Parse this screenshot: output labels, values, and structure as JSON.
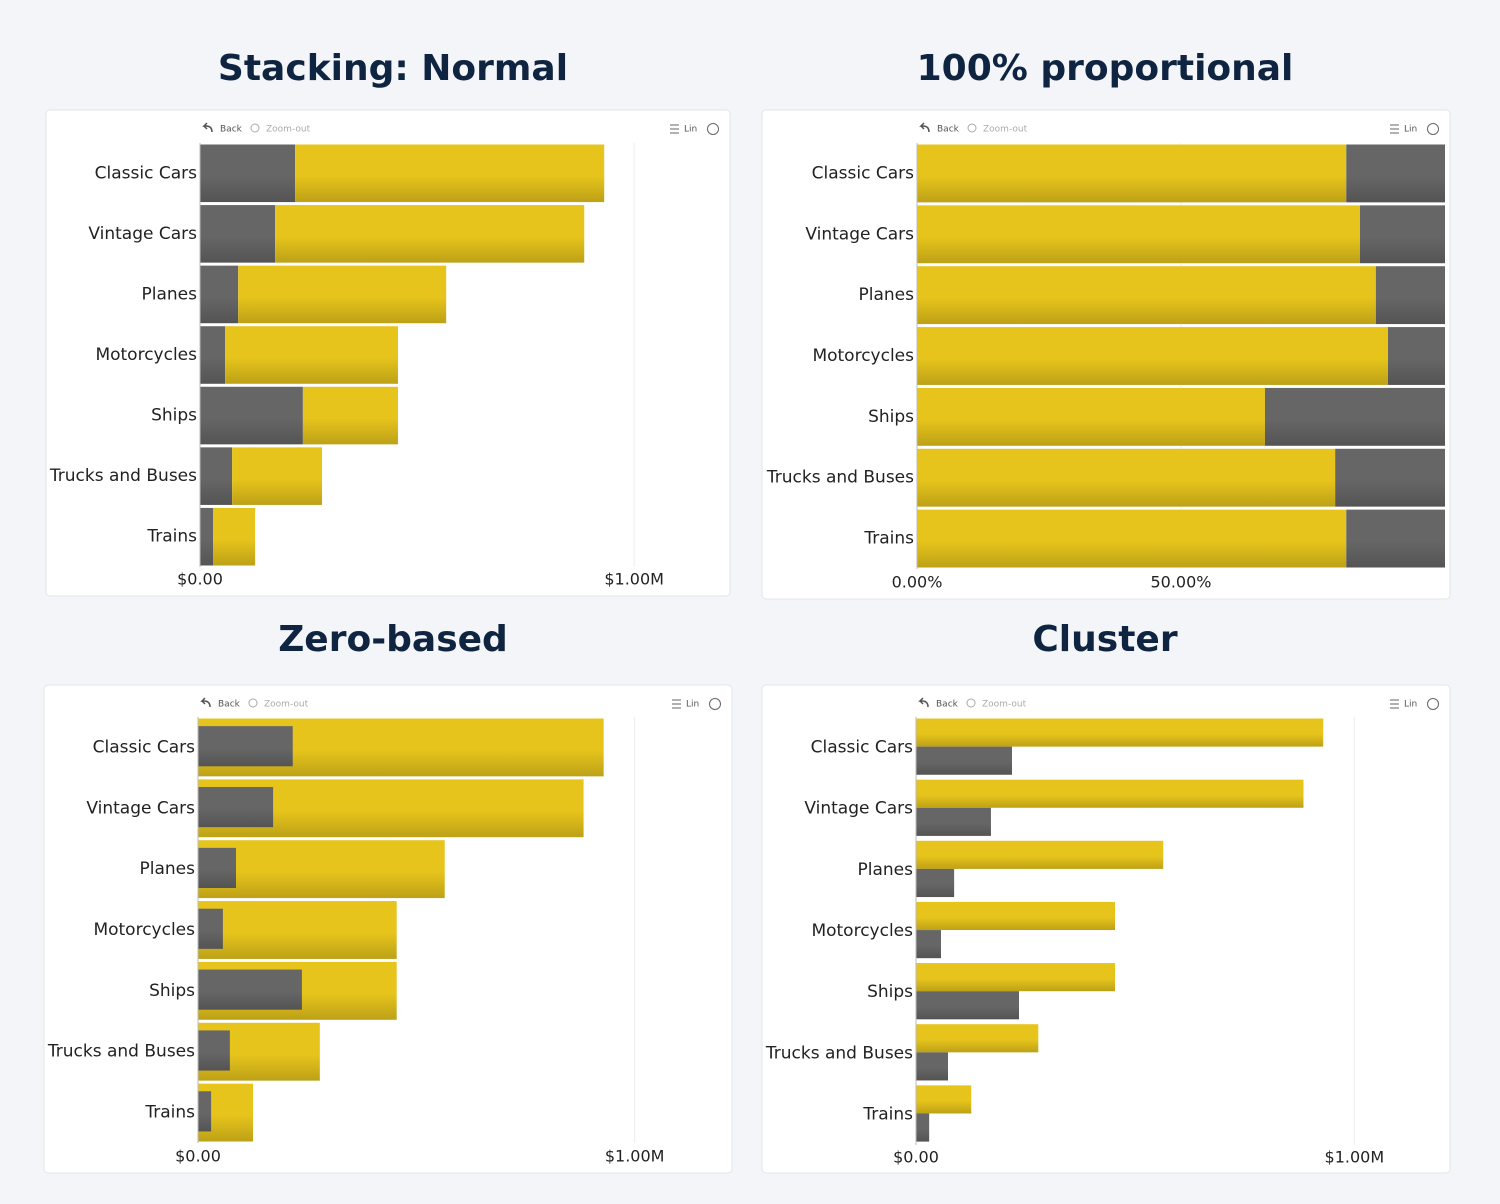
{
  "toolbar": {
    "back": "Back",
    "zoom": "Zoom-out",
    "scale": "Lin"
  },
  "chart_data": [
    {
      "type": "bar",
      "orientation": "horizontal",
      "stacking": "normal",
      "title": "Stacking: Normal",
      "categories": [
        "Classic Cars",
        "Vintage Cars",
        "Planes",
        "Motorcycles",
        "Ships",
        "Trucks and Buses",
        "Trains"
      ],
      "series": [
        {
          "color": "#666666",
          "values": [
            219000,
            173000,
            88000,
            58000,
            237000,
            74000,
            30000
          ]
        },
        {
          "color": "#e6c41c",
          "values": [
            712000,
            712000,
            479000,
            398000,
            219000,
            207000,
            97000
          ]
        }
      ],
      "xlim": [
        0,
        1200000
      ],
      "xticks": [
        {
          "value": 0,
          "label": "$0.00"
        },
        {
          "value": 1000000,
          "label": "$1.00M"
        }
      ],
      "grid": true
    },
    {
      "type": "bar",
      "orientation": "horizontal",
      "stacking": "percent",
      "title": "100% proportional",
      "categories": [
        "Classic Cars",
        "Vintage Cars",
        "Planes",
        "Motorcycles",
        "Ships",
        "Trucks and Buses",
        "Trains"
      ],
      "series": [
        {
          "color": "#e6c41c",
          "values": [
            81.3,
            83.9,
            86.9,
            89.2,
            65.9,
            79.2,
            81.3
          ]
        },
        {
          "color": "#666666",
          "values": [
            18.7,
            16.1,
            13.1,
            10.8,
            34.1,
            20.8,
            18.7
          ]
        }
      ],
      "xlim": [
        0,
        100
      ],
      "xticks": [
        {
          "value": 0,
          "label": "0.00%"
        },
        {
          "value": 50,
          "label": "50.00%"
        }
      ],
      "grid": true
    },
    {
      "type": "bar",
      "orientation": "horizontal",
      "stacking": "overlap",
      "title": "Zero-based",
      "categories": [
        "Classic Cars",
        "Vintage Cars",
        "Planes",
        "Motorcycles",
        "Ships",
        "Trucks and Buses",
        "Trains"
      ],
      "series": [
        {
          "color": "#e6c41c",
          "values": [
            929000,
            883000,
            565000,
            455000,
            455000,
            279000,
            126000
          ]
        },
        {
          "color": "#666666",
          "values": [
            217000,
            172000,
            87000,
            57000,
            238000,
            73000,
            30000
          ]
        }
      ],
      "xlim": [
        0,
        1200000
      ],
      "xticks": [
        {
          "value": 0,
          "label": "$0.00"
        },
        {
          "value": 1000000,
          "label": "$1.00M"
        }
      ],
      "grid": true
    },
    {
      "type": "bar",
      "orientation": "horizontal",
      "stacking": "cluster",
      "title": "Cluster",
      "categories": [
        "Classic Cars",
        "Vintage Cars",
        "Planes",
        "Motorcycles",
        "Ships",
        "Trucks and Buses",
        "Trains"
      ],
      "series": [
        {
          "color": "#e6c41c",
          "values": [
            929000,
            884000,
            564000,
            454000,
            454000,
            279000,
            126000
          ]
        },
        {
          "color": "#666666",
          "values": [
            219000,
            171000,
            87000,
            57000,
            235000,
            73000,
            30000
          ]
        }
      ],
      "xlim": [
        0,
        1200000
      ],
      "xticks": [
        {
          "value": 0,
          "label": "$0.00"
        },
        {
          "value": 1000000,
          "label": "$1.00M"
        }
      ],
      "grid": true
    }
  ]
}
